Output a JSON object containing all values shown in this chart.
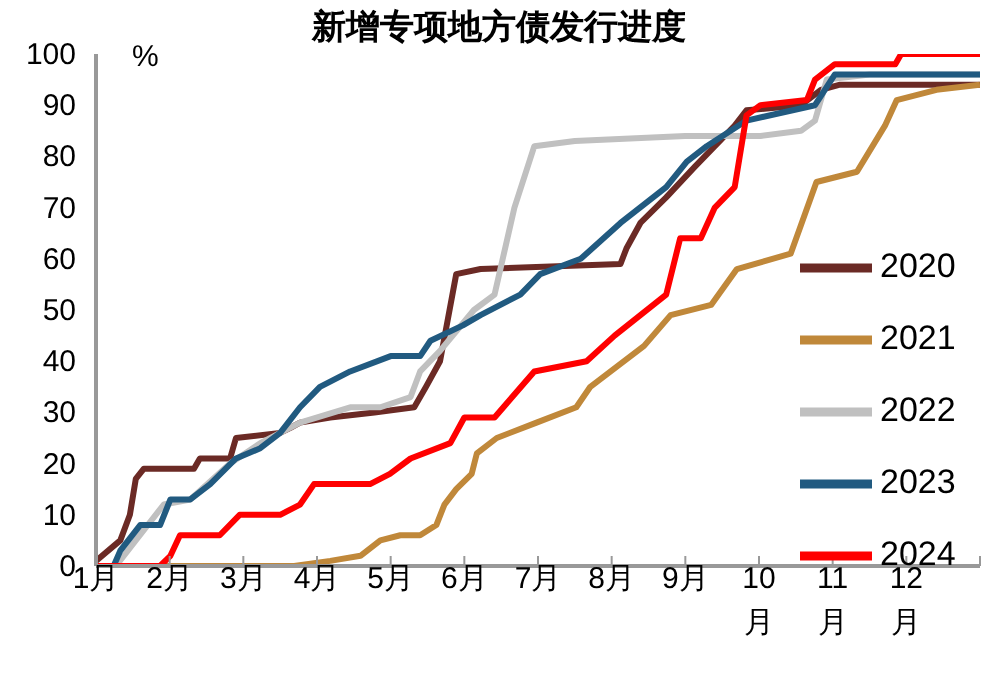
{
  "chart_data": {
    "type": "line",
    "title": "新增专项地方债发行进度",
    "ylabel": "%",
    "xlim": [
      1,
      13
    ],
    "xticks": [
      {
        "value": 1,
        "label": "1月"
      },
      {
        "value": 2,
        "label": "2月"
      },
      {
        "value": 3,
        "label": "3月"
      },
      {
        "value": 4,
        "label": "4月"
      },
      {
        "value": 5,
        "label": "5月"
      },
      {
        "value": 6,
        "label": "6月"
      },
      {
        "value": 7,
        "label": "7月"
      },
      {
        "value": 8,
        "label": "8月"
      },
      {
        "value": 9,
        "label": "9月"
      },
      {
        "value": 10,
        "label": "10月"
      },
      {
        "value": 11,
        "label": "11月"
      },
      {
        "value": 12,
        "label": "12月"
      },
      {
        "value": 13,
        "label": null
      }
    ],
    "ylim": [
      0,
      100
    ],
    "yticks": [
      0,
      10,
      20,
      30,
      40,
      50,
      60,
      70,
      80,
      90,
      100
    ],
    "grid": false,
    "legend": "right",
    "marker": "none",
    "line_style": "solid",
    "series": [
      {
        "name": "2020",
        "color": "#6b2a25",
        "x": [
          1,
          1.33,
          1.46,
          1.54,
          1.65,
          2.33,
          2.41,
          2.82,
          2.9,
          3.5,
          3.64,
          3.77,
          4.18,
          4.78,
          5.32,
          5.48,
          5.67,
          5.89,
          6.22,
          8.12,
          8.2,
          8.39,
          8.74,
          9.13,
          9.4,
          9.67,
          9.83,
          10.57,
          10.84,
          11.1,
          13
        ],
        "values": [
          1,
          5,
          10,
          17,
          19,
          19,
          21,
          21,
          25,
          26,
          27,
          28,
          29,
          30,
          31,
          35,
          40,
          57,
          58,
          59,
          62,
          67,
          72,
          78,
          82,
          86,
          89,
          90,
          93,
          94,
          94
        ]
      },
      {
        "name": "2021",
        "color": "#c0883a",
        "x": [
          1,
          3.69,
          4.18,
          4.59,
          4.86,
          5.13,
          5.4,
          5.62,
          5.73,
          5.89,
          6.1,
          6.17,
          6.44,
          6.98,
          7.52,
          7.71,
          8.44,
          8.8,
          9.35,
          9.7,
          10.43,
          10.78,
          11.33,
          11.71,
          11.87,
          12.41,
          13
        ],
        "values": [
          0,
          0,
          1,
          2,
          5,
          6,
          6,
          8,
          12,
          15,
          18,
          22,
          25,
          28,
          31,
          35,
          43,
          49,
          51,
          58,
          61,
          75,
          77,
          86,
          91,
          93,
          94
        ]
      },
      {
        "name": "2022",
        "color": "#c0c0c0",
        "x": [
          1,
          1.27,
          1.54,
          1.92,
          2.28,
          2.82,
          3.23,
          3.77,
          4.45,
          4.86,
          5.27,
          5.4,
          5.67,
          6.13,
          6.41,
          6.68,
          6.95,
          7.5,
          9,
          10.02,
          10.57,
          10.76,
          10.92,
          11.5,
          13
        ],
        "values": [
          0,
          0,
          5,
          12,
          13,
          20,
          24,
          28,
          31,
          31,
          33,
          38,
          42,
          50,
          53,
          70,
          82,
          83,
          84,
          84,
          85,
          87,
          95,
          96,
          96
        ]
      },
      {
        "name": "2023",
        "color": "#215a80",
        "x": [
          1,
          1.24,
          1.33,
          1.6,
          1.87,
          2.01,
          2.28,
          2.55,
          2.9,
          3.23,
          3.5,
          3.77,
          4.04,
          4.45,
          5,
          5.4,
          5.54,
          5.98,
          6.22,
          6.76,
          7.03,
          7.58,
          8.12,
          8.74,
          9.02,
          9.29,
          9.83,
          10.76,
          11.03,
          13
        ],
        "values": [
          0,
          0,
          3,
          8,
          8,
          13,
          13,
          16,
          21,
          23,
          26,
          31,
          35,
          38,
          41,
          41,
          44,
          47,
          49,
          53,
          57,
          60,
          67,
          74,
          79,
          82,
          87,
          90,
          96,
          96
        ]
      },
      {
        "name": "2024",
        "color": "#ff0000",
        "x": [
          1,
          1.87,
          2.01,
          2.14,
          2.68,
          2.95,
          3.5,
          3.77,
          3.96,
          4.72,
          4.99,
          5.27,
          5.81,
          6,
          6.41,
          6.95,
          7.66,
          8.04,
          8.39,
          8.74,
          8.93,
          9.21,
          9.4,
          9.67,
          9.83,
          10.02,
          10.65,
          10.76,
          11.03,
          11.85,
          11.93,
          13
        ],
        "values": [
          0,
          0,
          2,
          6,
          6,
          10,
          10,
          12,
          16,
          16,
          18,
          21,
          24,
          29,
          29,
          38,
          40,
          45,
          49,
          53,
          64,
          64,
          70,
          74,
          88,
          90,
          91,
          95,
          98,
          98,
          100,
          100
        ]
      }
    ]
  }
}
